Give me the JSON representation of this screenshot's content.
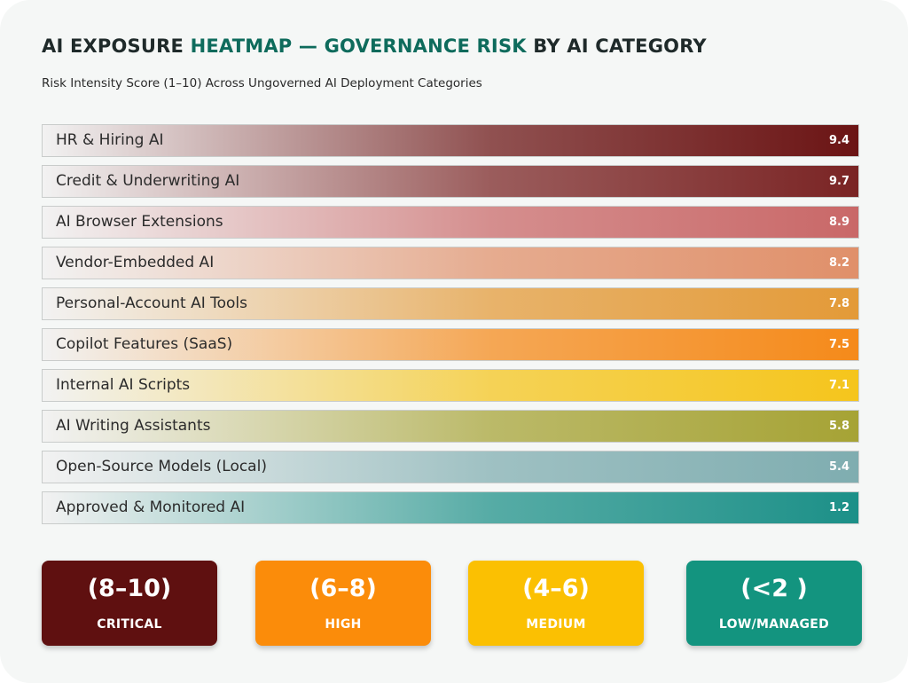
{
  "title": {
    "part1": "AI EXPOSURE ",
    "highlight": "HEATMAP — GOVERNANCE RISK",
    "part2": " BY AI CATEGORY"
  },
  "subtitle": "Risk Intensity Score (1–10) Across Ungoverned AI Deployment Categories",
  "chart_data": {
    "type": "bar",
    "orientation": "horizontal",
    "title": "AI EXPOSURE HEATMAP — GOVERNANCE RISK BY AI CATEGORY",
    "subtitle": "Risk Intensity Score (1–10) Across Ungoverned AI Deployment Categories",
    "categories": [
      "HR & Hiring AI",
      "Credit & Underwriting AI",
      "AI Browser Extensions",
      "Vendor-Embedded AI",
      "Personal-Account AI Tools",
      "Copilot Features (SaaS)",
      "Internal AI Scripts",
      "AI Writing Assistants",
      "Open-Source Models (Local)",
      "Approved & Monitored AI"
    ],
    "values": [
      9.4,
      9.7,
      8.9,
      8.2,
      7.8,
      7.5,
      7.1,
      5.8,
      5.4,
      1.2
    ],
    "value_labels": [
      "9.4",
      "9.7",
      "8.9",
      "8.2",
      "7.8",
      "7.5",
      "7.1",
      "5.8",
      "5.4",
      "1.2"
    ],
    "colors": [
      "#6b1414",
      "#7a2424",
      "#c96868",
      "#e0906a",
      "#e39a38",
      "#f58a1a",
      "#f5c51c",
      "#a6a335",
      "#7fadb0",
      "#1c9088"
    ],
    "xlim": [
      1,
      10
    ],
    "grid": false
  },
  "legend": [
    {
      "range": "(8–10)",
      "label": "CRITICAL",
      "color": "#5f1010"
    },
    {
      "range": "(6–8)",
      "label": "HIGH",
      "color": "#fb8c0a"
    },
    {
      "range": "(4–6)",
      "label": "MEDIUM",
      "color": "#fbc002"
    },
    {
      "range": "(<2 )",
      "label": "LOW/MANAGED",
      "color": "#13947f"
    }
  ]
}
